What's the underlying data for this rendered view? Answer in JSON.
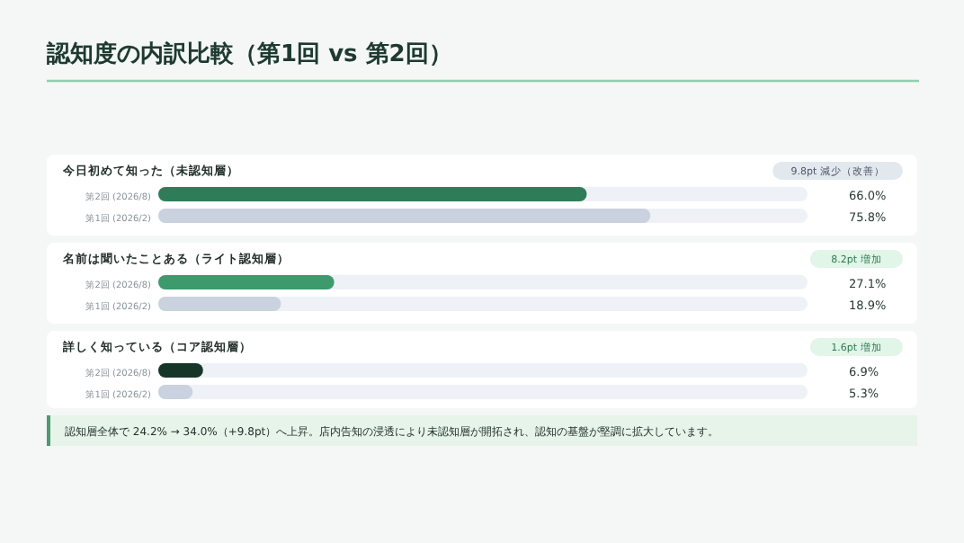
{
  "chart_data": [
    {
      "type": "bar",
      "orientation": "horizontal",
      "title": "認知度の内訳比較（第1回 vs 第2回）",
      "subtitle": "今日初めて知った（未認知層）",
      "categories": [
        "第2回 (2026/8)",
        "第1回 (2026/2)"
      ],
      "values": [
        66.0,
        75.8
      ],
      "colors": [
        "#2f7d58",
        "#c9d2de"
      ],
      "xlim": [
        0,
        100
      ],
      "data_labels": true,
      "value_labels": [
        "66.0%",
        "75.8%"
      ],
      "annotations": [
        "9.8pt 減少（改善）"
      ]
    },
    {
      "type": "bar",
      "orientation": "horizontal",
      "subtitle": "名前は聞いたことある（ライト認知層）",
      "categories": [
        "第2回 (2026/8)",
        "第1回 (2026/2)"
      ],
      "values": [
        27.1,
        18.9
      ],
      "colors": [
        "#3d9a6c",
        "#c9d2de"
      ],
      "xlim": [
        0,
        100
      ],
      "data_labels": true,
      "value_labels": [
        "27.1%",
        "18.9%"
      ],
      "annotations": [
        "8.2pt 増加"
      ]
    },
    {
      "type": "bar",
      "orientation": "horizontal",
      "subtitle": "詳しく知っている（コア認知層）",
      "categories": [
        "第2回 (2026/8)",
        "第1回 (2026/2)"
      ],
      "values": [
        6.9,
        5.3
      ],
      "colors": [
        "#17362a",
        "#c9d2de"
      ],
      "xlim": [
        0,
        100
      ],
      "data_labels": true,
      "value_labels": [
        "6.9%",
        "5.3%"
      ],
      "annotations": [
        "1.6pt 増加",
        "認知層全体で 24.2% → 34.0%（+9.8pt）へ上昇。店内告知の浸透により未認知層が開拓され、認知の基盤が堅調に拡大しています。"
      ]
    }
  ]
}
